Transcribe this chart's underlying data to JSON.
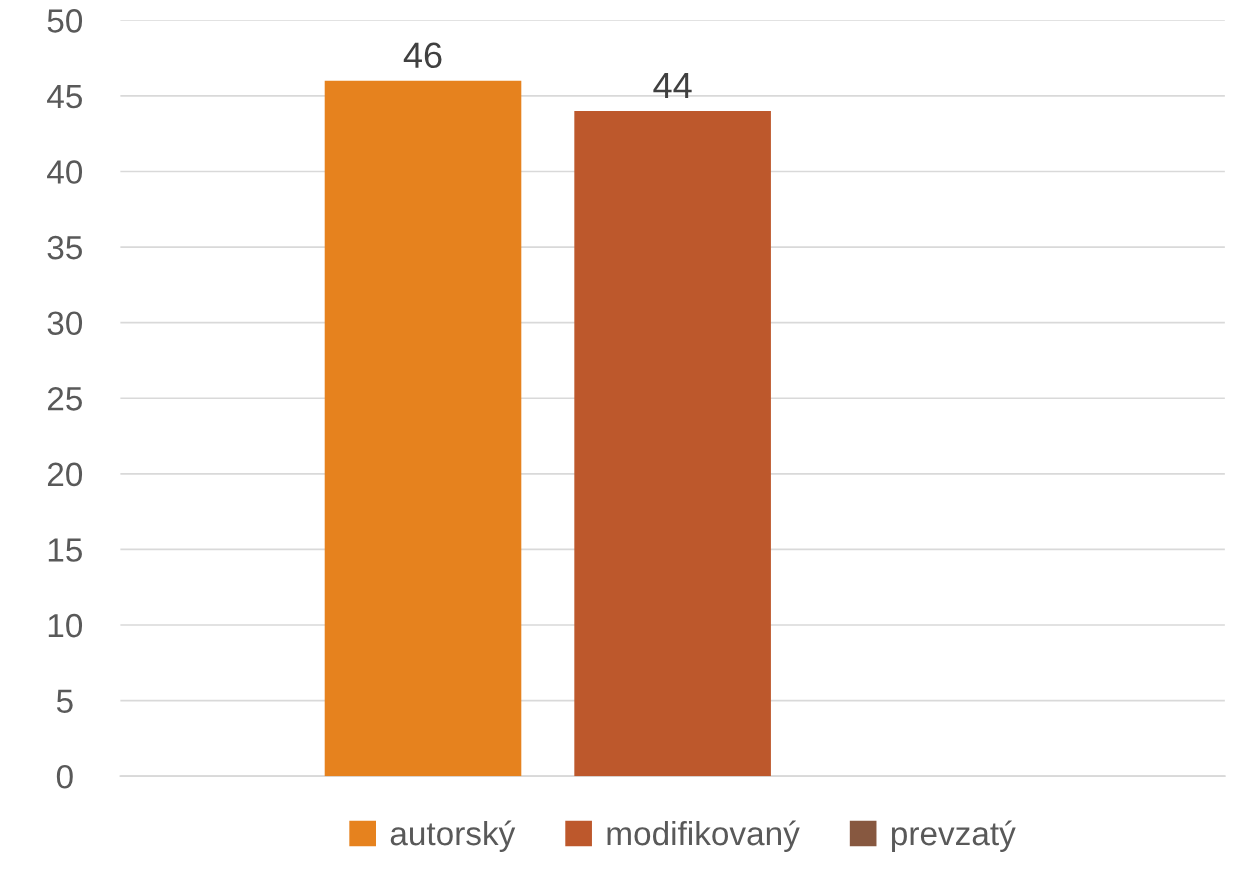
{
  "chart_data": {
    "type": "bar",
    "categories": [
      null
    ],
    "series": [
      {
        "name": "autorský",
        "color": "#e6821e",
        "values": [
          46
        ]
      },
      {
        "name": "modifikovaný",
        "color": "#bd582c",
        "values": [
          44
        ]
      },
      {
        "name": "prevzatý",
        "color": "#875840",
        "values": [
          null
        ]
      }
    ],
    "ylim": [
      0,
      50
    ],
    "yticks": [
      0,
      5,
      10,
      15,
      20,
      25,
      30,
      35,
      40,
      45,
      50
    ],
    "grid": "y",
    "legend": "bottom",
    "data_labels": true
  }
}
